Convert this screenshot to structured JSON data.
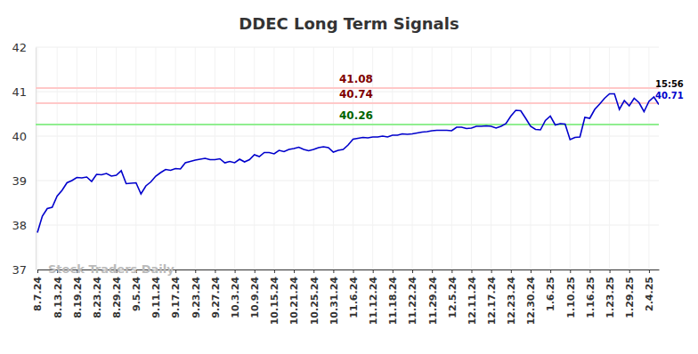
{
  "chart_data": {
    "type": "line",
    "title": "DDEC Long Term Signals",
    "watermark": "Stock Traders Daily",
    "color": "#0000cc",
    "grid": true,
    "ylim": [
      37,
      42
    ],
    "yticks": [
      37,
      38,
      39,
      40,
      41,
      42
    ],
    "categories": [
      "8.7.24",
      null,
      null,
      null,
      "8.13.24",
      null,
      null,
      null,
      "8.19.24",
      null,
      null,
      null,
      "8.23.24",
      null,
      null,
      null,
      "8.29.24",
      null,
      null,
      null,
      "9.5.24",
      null,
      null,
      null,
      "9.11.24",
      null,
      null,
      null,
      "9.17.24",
      null,
      null,
      null,
      "9.23.24",
      null,
      null,
      null,
      "9.27.24",
      null,
      null,
      null,
      "10.3.24",
      null,
      null,
      null,
      "10.9.24",
      null,
      null,
      null,
      "10.15.24",
      null,
      null,
      null,
      "10.21.24",
      null,
      null,
      null,
      "10.25.24",
      null,
      null,
      null,
      "10.31.24",
      null,
      null,
      null,
      "11.6.24",
      null,
      null,
      null,
      "11.12.24",
      null,
      null,
      null,
      "11.18.24",
      null,
      null,
      null,
      "11.22.24",
      null,
      null,
      null,
      "11.29.24",
      null,
      null,
      null,
      "12.5.24",
      null,
      null,
      null,
      "12.11.24",
      null,
      null,
      null,
      "12.17.24",
      null,
      null,
      null,
      "12.23.24",
      null,
      null,
      null,
      "12.30.24",
      null,
      null,
      null,
      "1.6.25",
      null,
      null,
      null,
      "1.10.25",
      null,
      null,
      null,
      "1.16.25",
      null,
      null,
      null,
      "1.23.25",
      null,
      null,
      null,
      "1.29.25",
      null,
      null,
      null,
      "2.4.25",
      null,
      null
    ],
    "values": [
      37.83,
      38.2,
      38.37,
      38.4,
      38.65,
      38.78,
      38.95,
      39.0,
      39.07,
      39.06,
      39.08,
      38.98,
      39.14,
      39.13,
      39.16,
      39.1,
      39.12,
      39.22,
      38.93,
      38.94,
      38.95,
      38.7,
      38.88,
      38.97,
      39.1,
      39.18,
      39.25,
      39.23,
      39.27,
      39.26,
      39.4,
      39.43,
      39.46,
      39.48,
      39.5,
      39.47,
      39.47,
      39.49,
      39.4,
      39.43,
      39.4,
      39.48,
      39.42,
      39.47,
      39.58,
      39.54,
      39.63,
      39.63,
      39.6,
      39.68,
      39.65,
      39.7,
      39.72,
      39.75,
      39.7,
      39.67,
      39.7,
      39.74,
      39.76,
      39.74,
      39.64,
      39.68,
      39.7,
      39.8,
      39.93,
      39.95,
      39.97,
      39.96,
      39.98,
      39.98,
      40.0,
      39.98,
      40.02,
      40.02,
      40.05,
      40.04,
      40.05,
      40.07,
      40.09,
      40.1,
      40.12,
      40.13,
      40.13,
      40.13,
      40.12,
      40.2,
      40.2,
      40.17,
      40.18,
      40.22,
      40.22,
      40.23,
      40.22,
      40.18,
      40.22,
      40.28,
      40.45,
      40.58,
      40.57,
      40.4,
      40.22,
      40.15,
      40.14,
      40.35,
      40.45,
      40.25,
      40.28,
      40.27,
      39.92,
      39.97,
      39.98,
      40.42,
      40.4,
      40.6,
      40.72,
      40.85,
      40.95,
      40.95,
      40.6,
      40.8,
      40.68,
      40.85,
      40.75,
      40.55,
      40.78,
      40.88,
      40.71
    ],
    "last_time": "15:56",
    "hlines": [
      {
        "value": 41.08,
        "color": "#ffc8c8",
        "label_color": "#800000"
      },
      {
        "value": 40.74,
        "color": "#ffc8c8",
        "label_color": "#800000"
      },
      {
        "value": 40.26,
        "color": "#90ee90",
        "label_color": "#006400"
      }
    ]
  }
}
